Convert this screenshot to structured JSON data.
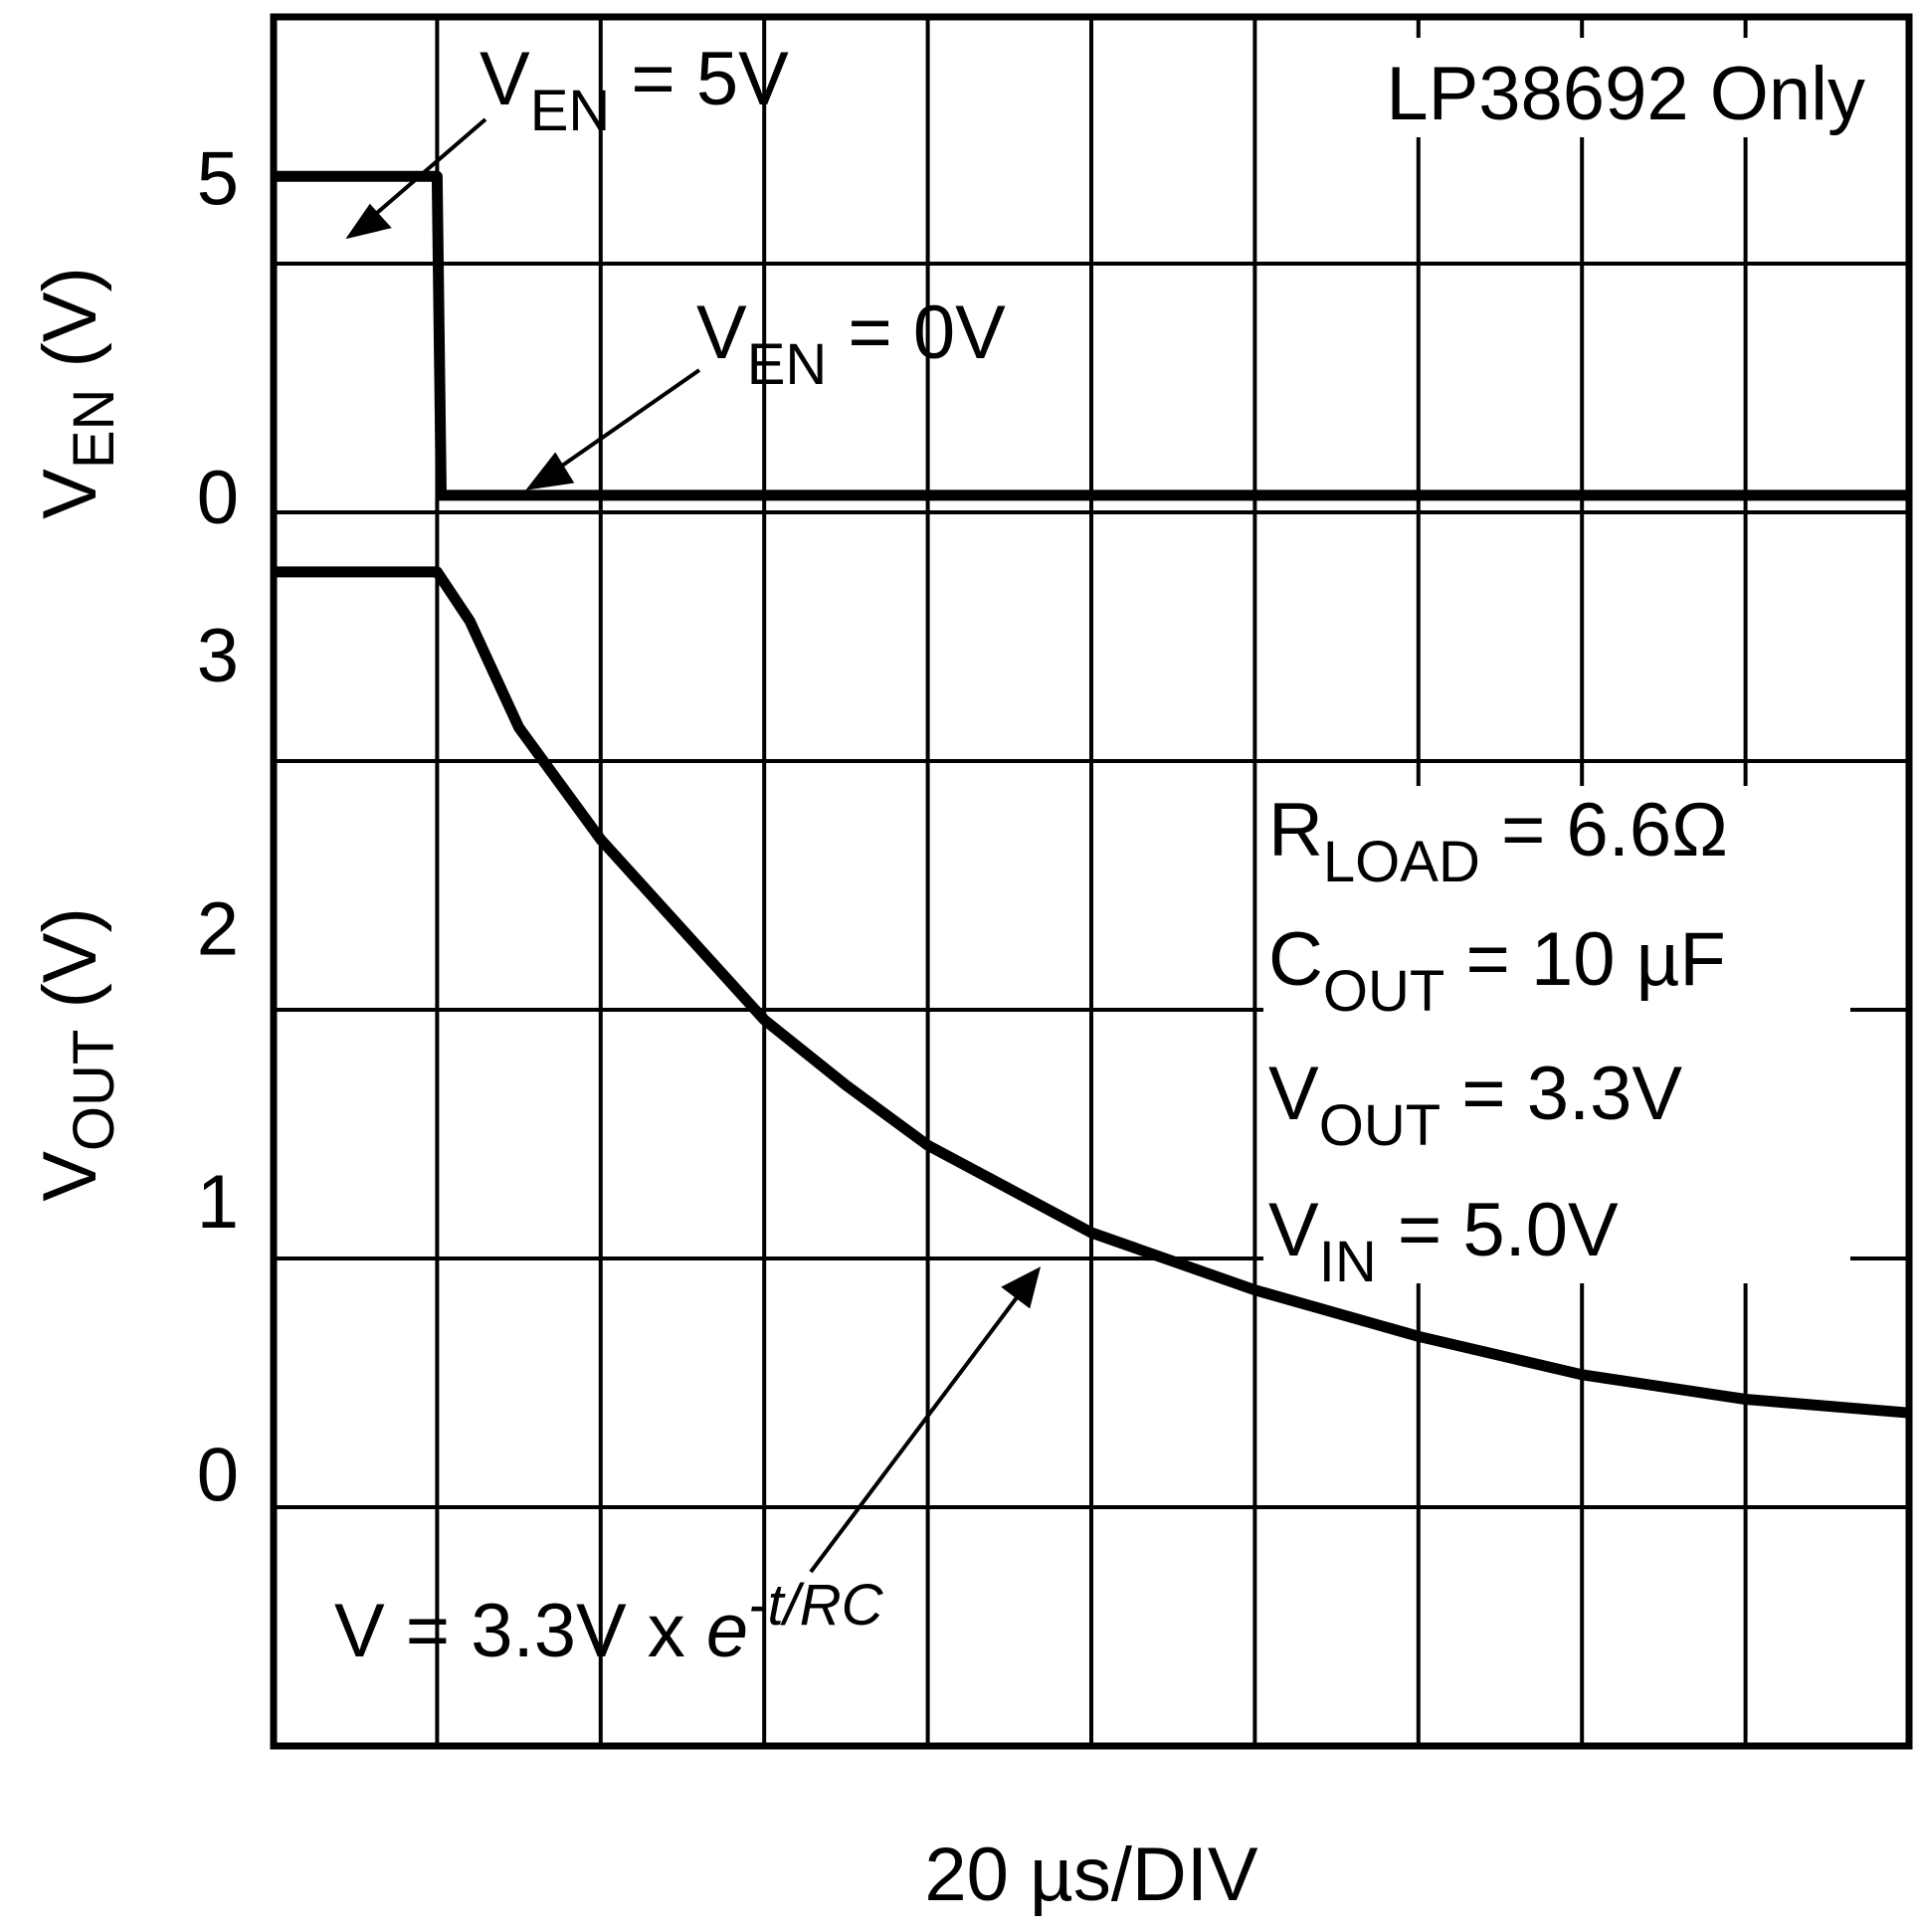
{
  "chart_data": {
    "type": "line",
    "note": "LP38692 Only",
    "xlabel": "20 µs/DIV",
    "x_unit": "µs",
    "x_divisions": 10,
    "xlim": [
      0,
      200
    ],
    "panels": [
      {
        "name": "enable",
        "ylabel": {
          "main": "V",
          "sub": "EN",
          "tail": " (V)"
        },
        "ylim": [
          -0.5,
          7.5
        ],
        "yticks": [
          {
            "value": 5,
            "label": "5"
          },
          {
            "value": 0,
            "label": "0"
          }
        ],
        "series": [
          {
            "name": "VEN",
            "x": [
              0,
              20,
              20.5,
              200
            ],
            "y": [
              5,
              5,
              0,
              0
            ]
          }
        ]
      },
      {
        "name": "output",
        "ylabel": {
          "main": "V",
          "sub": "OUT",
          "tail": " (V)"
        },
        "ylim": [
          -1,
          3.5
        ],
        "yticks": [
          {
            "value": 3,
            "label": "3"
          },
          {
            "value": 2,
            "label": "2"
          },
          {
            "value": 1,
            "label": "1"
          },
          {
            "value": 0,
            "label": "0"
          }
        ],
        "series": [
          {
            "name": "VOUT",
            "x": [
              0,
              20,
              24,
              30,
              40,
              50,
              60,
              70,
              80,
              100,
              120,
              140,
              160,
              180,
              200
            ],
            "y": [
              3.3,
              3.3,
              3.12,
              2.73,
              2.32,
              1.99,
              1.66,
              1.42,
              1.2,
              0.88,
              0.67,
              0.5,
              0.36,
              0.27,
              0.22
            ]
          }
        ]
      }
    ],
    "annotations": {
      "ven_high": {
        "main": "V",
        "sub": "EN",
        "tail": " = 5V"
      },
      "ven_low": {
        "main": "V",
        "sub": "EN",
        "tail": " = 0V"
      },
      "formula": {
        "main": "V = 3.3V x ",
        "e": "e",
        "sup": "-t/RC"
      },
      "conditions": [
        {
          "main": "R",
          "sub": "LOAD",
          "tail": " = 6.6Ω"
        },
        {
          "main": "C",
          "sub": "OUT",
          "tail": " = 10 µF"
        },
        {
          "main": "V",
          "sub": "OUT",
          "tail": " = 3.3V"
        },
        {
          "main": "V",
          "sub": "IN",
          "tail": " = 5.0V"
        }
      ]
    }
  }
}
